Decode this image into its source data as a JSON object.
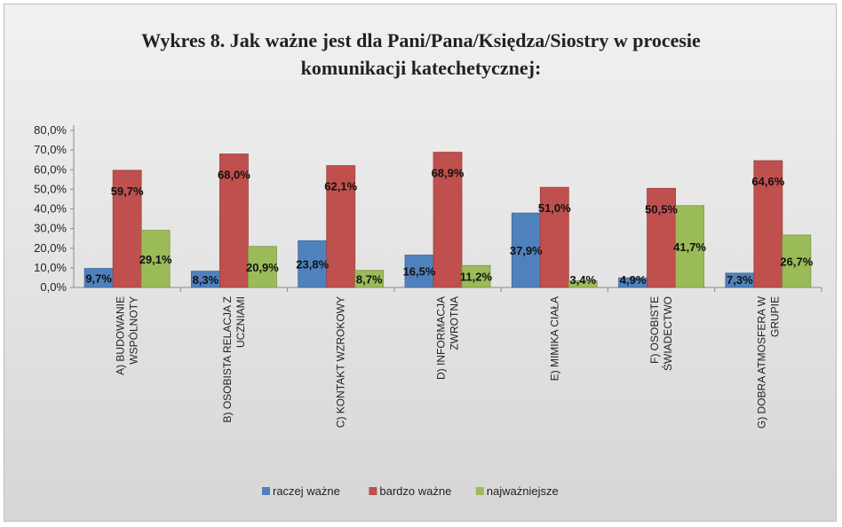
{
  "chart_data": {
    "type": "bar",
    "title": "Wykres 8. Jak ważne jest dla Pani/Pana/Księdza/Siostry w procesie komunikacji katechetycznej:",
    "title_lines": [
      "Wykres 8. Jak ważne jest dla Pani/Pana/Księdza/Siostry w procesie",
      "komunikacji katechetycznej:"
    ],
    "categories": [
      [
        "A) BUDOWANIE",
        "WSPÓLNOTY"
      ],
      [
        "B) OSOBISTA RELACJA Z",
        "UCZNIAMI"
      ],
      [
        "C) KONTAKT WZROKOWY"
      ],
      [
        "D) INFORMACJA",
        "ZWROTNA"
      ],
      [
        "E) MIMIKA CIAŁA"
      ],
      [
        "F) OSOBISTE",
        "ŚWIADECTWO"
      ],
      [
        "G) DOBRA ATMOSFERA W",
        "GRUPIE"
      ]
    ],
    "series": [
      {
        "name": "raczej ważne",
        "color": "#4f81bd",
        "values": [
          9.7,
          8.3,
          23.8,
          16.5,
          37.9,
          4.9,
          7.3
        ],
        "labels": [
          "9,7%",
          "8,3%",
          "23,8%",
          "16,5%",
          "37,9%",
          "4,9%",
          "7,3%"
        ]
      },
      {
        "name": "bardzo ważne",
        "color": "#c0504d",
        "values": [
          59.7,
          68.0,
          62.1,
          68.9,
          51.0,
          50.5,
          64.6
        ],
        "labels": [
          "59,7%",
          "68,0%",
          "62,1%",
          "68,9%",
          "51,0%",
          "50,5%",
          "64,6%"
        ]
      },
      {
        "name": "najważniejsze",
        "color": "#9bbb59",
        "values": [
          29.1,
          20.9,
          8.7,
          11.2,
          3.4,
          41.7,
          26.7
        ],
        "labels": [
          "29,1%",
          "20,9%",
          "8,7%",
          "11,2%",
          "3,4%",
          "41,7%",
          "26,7%"
        ]
      }
    ],
    "ylim": [
      0,
      80
    ],
    "yticks": [
      "0,0%",
      "10,0%",
      "20,0%",
      "30,0%",
      "40,0%",
      "50,0%",
      "60,0%",
      "70,0%",
      "80,0%"
    ],
    "xlabel": "",
    "ylabel": "",
    "grid": false,
    "legend_position": "bottom"
  }
}
